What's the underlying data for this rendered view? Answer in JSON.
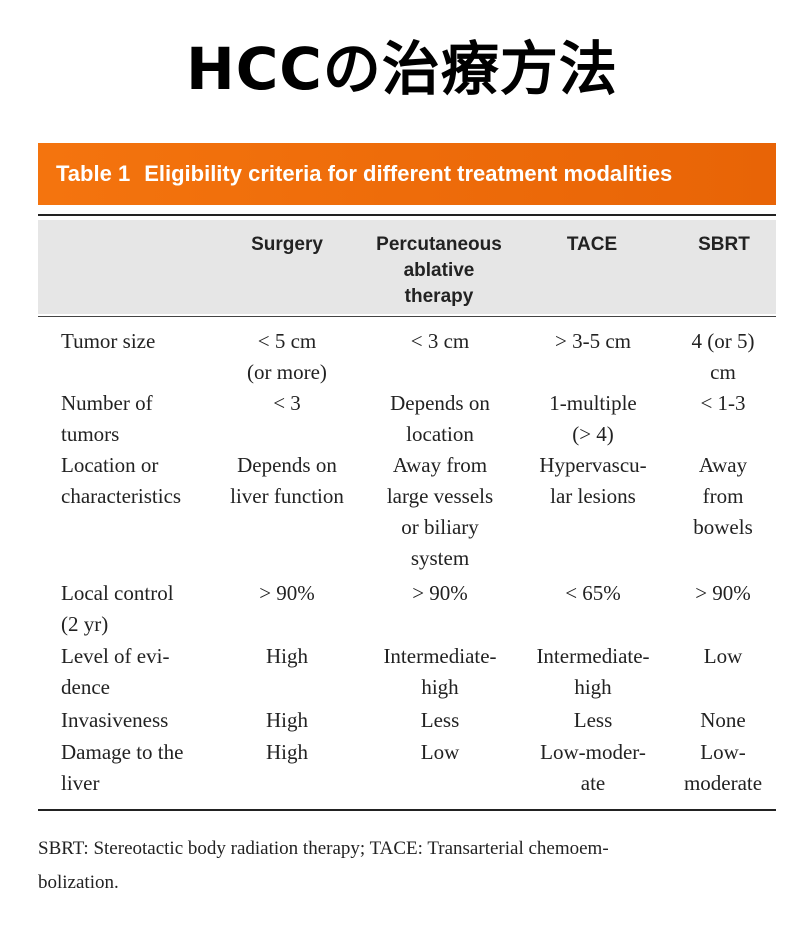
{
  "title": "HCCの治療方法",
  "table": {
    "number": "Table 1",
    "caption": "Eligibility criteria for different treatment modalities",
    "columns": [
      "Surgery",
      "Percutaneous\nablative\ntherapy",
      "TACE",
      "SBRT"
    ],
    "rows": [
      {
        "label": "Tumor size",
        "cells": [
          "< 5 cm\n(or more)",
          "< 3 cm",
          "> 3-5 cm",
          "4 (or 5)\ncm"
        ]
      },
      {
        "label": "Number of\ntumors",
        "cells": [
          "< 3",
          "Depends on\nlocation",
          "1-multiple\n(> 4)",
          "< 1-3"
        ]
      },
      {
        "label": "Location or\ncharacteristics",
        "cells": [
          "Depends on\nliver function",
          "Away from\nlarge vessels\nor biliary\nsystem",
          "Hypervascu-\nlar lesions",
          "Away\nfrom\nbowels"
        ]
      },
      {
        "label": "Local control\n(2 yr)",
        "cells": [
          "> 90%",
          "> 90%",
          "< 65%",
          "> 90%"
        ]
      },
      {
        "label": "Level of evi-\ndence",
        "cells": [
          "High",
          "Intermediate-\nhigh",
          "Intermediate-\nhigh",
          "Low"
        ]
      },
      {
        "label": "Invasiveness",
        "cells": [
          "High",
          "Less",
          "Less",
          "None"
        ]
      },
      {
        "label": "Damage to the\nliver",
        "cells": [
          "High",
          "Low",
          "Low-moder-\nate",
          "Low-\nmoderate"
        ]
      }
    ],
    "footnote": "SBRT: Stereotactic body radiation therapy; TACE: Transarterial chemoem-\nbolization."
  },
  "colors": {
    "banner": "#f4740e",
    "header_band": "#e6e6e6",
    "text": "#222222"
  }
}
